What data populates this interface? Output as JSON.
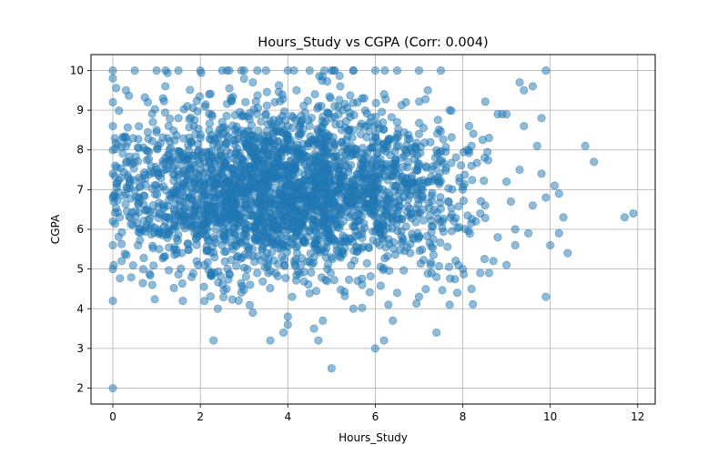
{
  "chart_data": {
    "type": "scatter",
    "title": "Hours_Study vs CGPA (Corr: 0.004)",
    "xlabel": "Hours_Study",
    "ylabel": "CGPA",
    "xlim": [
      -0.5,
      12.4
    ],
    "ylim": [
      1.6,
      10.4
    ],
    "xticks": [
      0,
      2,
      4,
      6,
      8,
      10,
      12
    ],
    "yticks": [
      2,
      3,
      4,
      5,
      6,
      7,
      8,
      9,
      10
    ],
    "grid": true,
    "marker_color": "#1f77b4",
    "marker_alpha": 0.5,
    "series": [
      {
        "points_note_free": true,
        "x": [
          0,
          0,
          0,
          0,
          0,
          0,
          0,
          0,
          0,
          0,
          0,
          0,
          0.5,
          1.0,
          1.5,
          2.0,
          2.5,
          3.0,
          3.5,
          4.0,
          4.5,
          5.0,
          5.5,
          6.0,
          6.5,
          7.0,
          7.5,
          0.3,
          0.8,
          1.2,
          1.7,
          2.2,
          2.7,
          3.2,
          3.7,
          4.2,
          4.7,
          5.2,
          5.7,
          6.2,
          6.7,
          7.2,
          7.7,
          1.0,
          1.5,
          2.0,
          2.5,
          3.0,
          3.5,
          4.0,
          4.5,
          5.0,
          5.5,
          6.0,
          6.5,
          7.0,
          1.2,
          2.0,
          2.8,
          3.5,
          4.3,
          5.1,
          5.9,
          6.6,
          7.3,
          0.6,
          1.4,
          2.1,
          3.0,
          3.9,
          4.8,
          5.6,
          6.4,
          7.1,
          7.8,
          2.3,
          3.1,
          3.8,
          4.6,
          5.3,
          6.1,
          6.8,
          1.8,
          2.6,
          3.3,
          4.1,
          4.9,
          5.7,
          6.5,
          7.4,
          0.2,
          0.9,
          1.6,
          2.4,
          3.2,
          4.0,
          4.8,
          5.5,
          6.3,
          7.0,
          7.9,
          8.0,
          8.2,
          8.4,
          8.6,
          8.8,
          9.0,
          9.2,
          9.4,
          9.6,
          9.8,
          10.0,
          10.2,
          8.1,
          8.3,
          8.5,
          8.7,
          8.9,
          9.1,
          9.3,
          9.5,
          9.7,
          9.9,
          10.1,
          10.3,
          8.2,
          8.6,
          9.0,
          9.4,
          9.8,
          10.4,
          10.8,
          11.0,
          11.7,
          11.9,
          8.0,
          8.4,
          8.8,
          9.2,
          9.6,
          9.9,
          10.2,
          5.0,
          6.0,
          6.2,
          2.3,
          4.7,
          3.6,
          7.4,
          4.0,
          6.4,
          4.6,
          3.9,
          7.7,
          8.2,
          9.0,
          9.3,
          9.9
        ],
        "y": [
          2.0,
          4.2,
          5.0,
          5.6,
          6.2,
          6.8,
          7.4,
          8.0,
          8.6,
          9.2,
          9.8,
          10.0,
          10.0,
          10.0,
          10.0,
          10.0,
          10.0,
          10.0,
          10.0,
          10.0,
          10.0,
          10.0,
          10.0,
          10.0,
          10.0,
          10.0,
          10.0,
          9.5,
          9.2,
          9.6,
          9.1,
          9.4,
          9.3,
          9.7,
          9.2,
          9.5,
          9.1,
          9.6,
          9.3,
          9.4,
          9.2,
          9.5,
          9.0,
          8.5,
          8.8,
          8.3,
          8.7,
          8.4,
          8.9,
          8.6,
          8.2,
          8.8,
          8.5,
          8.3,
          8.7,
          8.4,
          7.8,
          7.5,
          7.9,
          7.3,
          7.7,
          7.6,
          7.4,
          7.8,
          7.5,
          6.8,
          6.5,
          6.9,
          6.3,
          6.7,
          6.6,
          6.4,
          6.8,
          6.5,
          6.2,
          5.8,
          5.5,
          5.9,
          5.3,
          5.7,
          5.6,
          5.4,
          4.8,
          4.5,
          4.9,
          4.3,
          4.7,
          4.6,
          4.4,
          4.8,
          5.2,
          4.6,
          4.2,
          4.0,
          3.9,
          3.8,
          3.7,
          4.0,
          4.1,
          4.3,
          5.1,
          7.0,
          7.6,
          6.4,
          8.3,
          5.8,
          7.2,
          6.0,
          8.6,
          6.6,
          7.4,
          5.6,
          6.9,
          8.0,
          6.2,
          7.8,
          5.2,
          8.9,
          6.7,
          7.5,
          5.9,
          8.1,
          6.8,
          7.1,
          6.3,
          4.5,
          4.9,
          5.1,
          9.5,
          8.8,
          5.4,
          8.1,
          7.7,
          6.3,
          6.4,
          5.0,
          4.9,
          8.9,
          5.6,
          9.6,
          4.3,
          5.9,
          2.5,
          3.0,
          3.2,
          3.2,
          3.2,
          3.2,
          3.4,
          3.6,
          3.7,
          3.5,
          3.4,
          4.1,
          8.1,
          8.9,
          9.7,
          10.0
        ]
      }
    ]
  }
}
